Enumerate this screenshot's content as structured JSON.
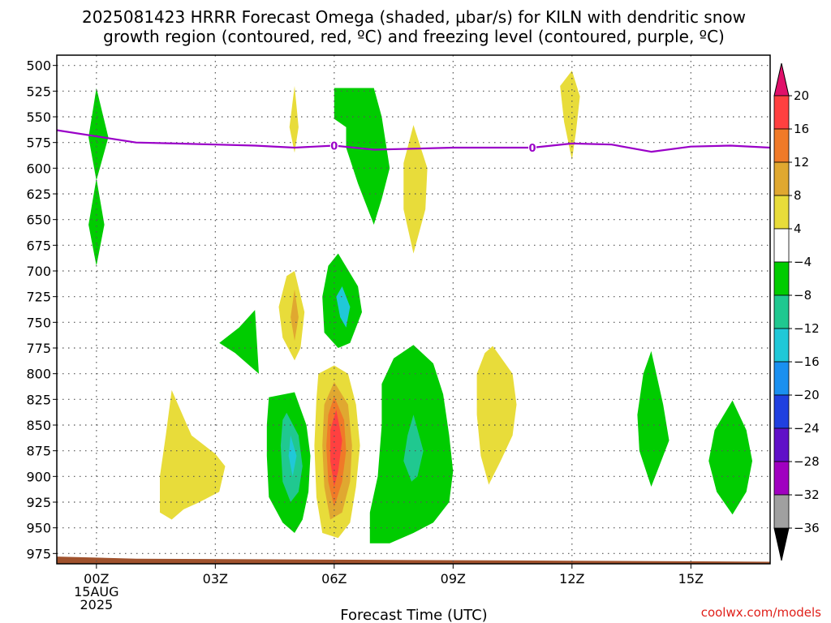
{
  "chart_data": {
    "type": "contour",
    "title_line1": "2025081423 HRRR Forecast Omega (shaded, µbar/s) for KILN with dendritic snow",
    "title_line2": "growth region (contoured, red, ºC) and freezing level (contoured, purple, ºC)",
    "xlabel": "Forecast Time (UTC)",
    "credit": "coolwx.com/models",
    "x_range_hours": [
      -1,
      17
    ],
    "y_range_mb": [
      490,
      985
    ],
    "x_ticks": [
      {
        "hour": 0,
        "lines": [
          "00Z",
          "15AUG",
          "2025"
        ]
      },
      {
        "hour": 3,
        "lines": [
          "03Z"
        ]
      },
      {
        "hour": 6,
        "lines": [
          "06Z"
        ]
      },
      {
        "hour": 9,
        "lines": [
          "09Z"
        ]
      },
      {
        "hour": 12,
        "lines": [
          "12Z"
        ]
      },
      {
        "hour": 15,
        "lines": [
          "15Z"
        ]
      }
    ],
    "y_ticks": [
      500,
      525,
      550,
      575,
      600,
      625,
      650,
      675,
      700,
      725,
      750,
      775,
      800,
      825,
      850,
      875,
      900,
      925,
      950,
      975
    ],
    "grid": true,
    "colorbar": {
      "labels": [
        "20",
        "16",
        "12",
        "8",
        "4",
        "−4",
        "−8",
        "−12",
        "−16",
        "−20",
        "−24",
        "−28",
        "−32",
        "−36"
      ],
      "bins": [
        {
          "range": "16-20",
          "color": "#ff4040"
        },
        {
          "range": "12-16",
          "color": "#f07a28"
        },
        {
          "range": "8-12",
          "color": "#e0a830"
        },
        {
          "range": "4-8",
          "color": "#e8dc3a"
        },
        {
          "range": "-4-4",
          "color": "#ffffff"
        },
        {
          "range": "-8--4",
          "color": "#00cc00"
        },
        {
          "range": "-12--8",
          "color": "#20c890"
        },
        {
          "range": "-16--12",
          "color": "#20c8d8"
        },
        {
          "range": "-20--16",
          "color": "#1a90f0"
        },
        {
          "range": "-24--20",
          "color": "#2040e0"
        },
        {
          "range": "-28--24",
          "color": "#6010c8"
        },
        {
          "range": "-32--28",
          "color": "#a000c0"
        },
        {
          "range": "-36--32",
          "color": "#a0a0a0"
        }
      ],
      "top_arrow_color": "#e0106a",
      "bottom_arrow_color": "#000000"
    },
    "freezing_level": {
      "label": "0",
      "color": "#9a00c8",
      "label_hours": [
        6,
        11
      ],
      "points": [
        [
          -1,
          563
        ],
        [
          0,
          569
        ],
        [
          1,
          575
        ],
        [
          2,
          576
        ],
        [
          3,
          577
        ],
        [
          4,
          578
        ],
        [
          5,
          580
        ],
        [
          6,
          578
        ],
        [
          7,
          582
        ],
        [
          8,
          581
        ],
        [
          9,
          580
        ],
        [
          10,
          580
        ],
        [
          11,
          580
        ],
        [
          12,
          576
        ],
        [
          13,
          577
        ],
        [
          14,
          584
        ],
        [
          15,
          579
        ],
        [
          16,
          578
        ],
        [
          17,
          580
        ]
      ]
    },
    "omega_shapes": [
      {
        "color": "#00cc00",
        "points": [
          [
            0,
            522
          ],
          [
            0.3,
            570
          ],
          [
            0,
            612
          ],
          [
            -0.2,
            570
          ]
        ]
      },
      {
        "color": "#00cc00",
        "points": [
          [
            0,
            610
          ],
          [
            0.2,
            655
          ],
          [
            0,
            695
          ],
          [
            -0.2,
            655
          ]
        ]
      },
      {
        "color": "#e8dc3a",
        "points": [
          [
            5,
            520
          ],
          [
            5.1,
            560
          ],
          [
            5,
            585
          ],
          [
            4.87,
            560
          ]
        ]
      },
      {
        "color": "#00cc00",
        "points": [
          [
            6,
            522
          ],
          [
            7,
            522
          ],
          [
            7.2,
            550
          ],
          [
            7.4,
            600
          ],
          [
            7.2,
            630
          ],
          [
            7,
            655
          ],
          [
            6.6,
            615
          ],
          [
            6.3,
            580
          ],
          [
            6.3,
            560
          ],
          [
            6,
            552
          ]
        ]
      },
      {
        "color": "#e8dc3a",
        "points": [
          [
            8,
            558
          ],
          [
            8.35,
            600
          ],
          [
            8.3,
            640
          ],
          [
            8,
            683
          ],
          [
            7.75,
            640
          ],
          [
            7.75,
            595
          ]
        ]
      },
      {
        "color": "#e8dc3a",
        "points": [
          [
            12,
            505
          ],
          [
            12.2,
            530
          ],
          [
            12.1,
            565
          ],
          [
            12,
            592
          ],
          [
            11.8,
            555
          ],
          [
            11.7,
            520
          ]
        ]
      },
      {
        "color": "#e8dc3a",
        "points": [
          [
            5,
            700
          ],
          [
            5.25,
            740
          ],
          [
            5.15,
            775
          ],
          [
            5,
            787
          ],
          [
            4.7,
            765
          ],
          [
            4.6,
            735
          ],
          [
            4.8,
            705
          ]
        ]
      },
      {
        "color": "#e0a830",
        "points": [
          [
            5,
            718
          ],
          [
            5.1,
            745
          ],
          [
            5,
            768
          ],
          [
            4.9,
            745
          ]
        ]
      },
      {
        "color": "#00cc00",
        "points": [
          [
            6.1,
            683
          ],
          [
            6.6,
            715
          ],
          [
            6.7,
            740
          ],
          [
            6.4,
            770
          ],
          [
            6.1,
            775
          ],
          [
            5.75,
            760
          ],
          [
            5.7,
            725
          ],
          [
            5.85,
            695
          ]
        ]
      },
      {
        "color": "#20c8d8",
        "points": [
          [
            6.2,
            715
          ],
          [
            6.4,
            735
          ],
          [
            6.3,
            755
          ],
          [
            6.15,
            745
          ],
          [
            6.05,
            725
          ]
        ]
      },
      {
        "color": "#00cc00",
        "points": [
          [
            4,
            738
          ],
          [
            4.1,
            800
          ],
          [
            3.8,
            790
          ],
          [
            3.5,
            780
          ],
          [
            3.1,
            770
          ],
          [
            3.6,
            755
          ]
        ]
      },
      {
        "color": "#e8dc3a",
        "points": [
          [
            1.9,
            816
          ],
          [
            2.4,
            860
          ],
          [
            3.0,
            878
          ],
          [
            3.25,
            890
          ],
          [
            3.1,
            915
          ],
          [
            2.6,
            925
          ],
          [
            2.2,
            932
          ],
          [
            1.9,
            942
          ],
          [
            1.6,
            935
          ],
          [
            1.6,
            900
          ],
          [
            1.75,
            860
          ]
        ]
      },
      {
        "color": "#00cc00",
        "points": [
          [
            4.35,
            823
          ],
          [
            5.0,
            818
          ],
          [
            5.3,
            850
          ],
          [
            5.4,
            880
          ],
          [
            5.35,
            915
          ],
          [
            5.2,
            942
          ],
          [
            5.0,
            955
          ],
          [
            4.7,
            945
          ],
          [
            4.35,
            920
          ],
          [
            4.3,
            880
          ],
          [
            4.3,
            850
          ]
        ]
      },
      {
        "color": "#20c890",
        "points": [
          [
            4.8,
            838
          ],
          [
            5.1,
            860
          ],
          [
            5.2,
            890
          ],
          [
            5.1,
            915
          ],
          [
            4.9,
            925
          ],
          [
            4.7,
            905
          ],
          [
            4.65,
            870
          ],
          [
            4.7,
            845
          ]
        ]
      },
      {
        "color": "#20c8d8",
        "points": [
          [
            4.9,
            860
          ],
          [
            5.05,
            880
          ],
          [
            4.95,
            900
          ],
          [
            4.85,
            880
          ]
        ]
      },
      {
        "color": "#e8dc3a",
        "points": [
          [
            6,
            792
          ],
          [
            6.35,
            800
          ],
          [
            6.55,
            830
          ],
          [
            6.65,
            870
          ],
          [
            6.55,
            910
          ],
          [
            6.4,
            945
          ],
          [
            6.1,
            960
          ],
          [
            5.7,
            955
          ],
          [
            5.55,
            920
          ],
          [
            5.5,
            870
          ],
          [
            5.55,
            825
          ],
          [
            5.6,
            800
          ]
        ]
      },
      {
        "color": "#e0a830",
        "points": [
          [
            6,
            808
          ],
          [
            6.35,
            830
          ],
          [
            6.45,
            870
          ],
          [
            6.4,
            905
          ],
          [
            6.2,
            935
          ],
          [
            5.9,
            942
          ],
          [
            5.75,
            910
          ],
          [
            5.7,
            870
          ],
          [
            5.75,
            830
          ]
        ]
      },
      {
        "color": "#f07a28",
        "points": [
          [
            6,
            822
          ],
          [
            6.25,
            845
          ],
          [
            6.3,
            875
          ],
          [
            6.2,
            905
          ],
          [
            6,
            930
          ],
          [
            5.85,
            905
          ],
          [
            5.8,
            870
          ],
          [
            5.85,
            840
          ]
        ]
      },
      {
        "color": "#ff4040",
        "points": [
          [
            6.05,
            835
          ],
          [
            6.2,
            865
          ],
          [
            6.1,
            895
          ],
          [
            6,
            910
          ],
          [
            5.9,
            885
          ],
          [
            5.9,
            855
          ]
        ]
      },
      {
        "color": "#00cc00",
        "points": [
          [
            8,
            772
          ],
          [
            8.5,
            790
          ],
          [
            8.75,
            820
          ],
          [
            8.9,
            860
          ],
          [
            9.0,
            895
          ],
          [
            8.9,
            925
          ],
          [
            8.5,
            945
          ],
          [
            8.0,
            955
          ],
          [
            7.4,
            965
          ],
          [
            6.9,
            965
          ],
          [
            6.9,
            935
          ],
          [
            7.1,
            900
          ],
          [
            7.2,
            850
          ],
          [
            7.2,
            810
          ],
          [
            7.5,
            785
          ]
        ]
      },
      {
        "color": "#20c890",
        "points": [
          [
            8,
            840
          ],
          [
            8.25,
            875
          ],
          [
            8.1,
            900
          ],
          [
            7.95,
            905
          ],
          [
            7.75,
            885
          ],
          [
            7.85,
            860
          ]
        ]
      },
      {
        "color": "#e8dc3a",
        "points": [
          [
            10,
            773
          ],
          [
            10.5,
            800
          ],
          [
            10.6,
            830
          ],
          [
            10.5,
            860
          ],
          [
            10.2,
            885
          ],
          [
            9.9,
            908
          ],
          [
            9.7,
            880
          ],
          [
            9.6,
            840
          ],
          [
            9.6,
            800
          ],
          [
            9.8,
            780
          ]
        ]
      },
      {
        "color": "#00cc00",
        "points": [
          [
            14,
            778
          ],
          [
            14.3,
            830
          ],
          [
            14.45,
            865
          ],
          [
            14.2,
            890
          ],
          [
            14,
            910
          ],
          [
            13.7,
            875
          ],
          [
            13.65,
            840
          ],
          [
            13.8,
            800
          ]
        ]
      },
      {
        "color": "#00cc00",
        "points": [
          [
            16.05,
            826
          ],
          [
            16.4,
            855
          ],
          [
            16.55,
            885
          ],
          [
            16.4,
            915
          ],
          [
            16.05,
            937
          ],
          [
            15.65,
            915
          ],
          [
            15.45,
            885
          ],
          [
            15.6,
            855
          ]
        ]
      }
    ],
    "ground_color": "#a0522d"
  }
}
